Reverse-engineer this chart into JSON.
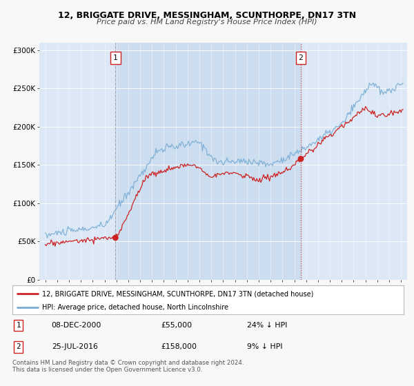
{
  "title": "12, BRIGGATE DRIVE, MESSINGHAM, SCUNTHORPE, DN17 3TN",
  "subtitle": "Price paid vs. HM Land Registry's House Price Index (HPI)",
  "bg_color": "#f8f8f8",
  "plot_bg_color": "#dce8f5",
  "span_color": "#ccddf0",
  "legend_label_red": "12, BRIGGATE DRIVE, MESSINGHAM, SCUNTHORPE, DN17 3TN (detached house)",
  "legend_label_blue": "HPI: Average price, detached house, North Lincolnshire",
  "sale1_date": 2000.92,
  "sale1_price": 55000,
  "sale1_label": "1",
  "sale1_text": "08-DEC-2000",
  "sale1_pct": "24% ↓ HPI",
  "sale2_date": 2016.55,
  "sale2_price": 158000,
  "sale2_label": "2",
  "sale2_text": "25-JUL-2016",
  "sale2_pct": "9% ↓ HPI",
  "ylim_max": 310000,
  "xmin": 1994.5,
  "xmax": 2025.5,
  "red_color": "#cc2222",
  "blue_color": "#7aadd4",
  "footer": "Contains HM Land Registry data © Crown copyright and database right 2024.\nThis data is licensed under the Open Government Licence v3.0."
}
